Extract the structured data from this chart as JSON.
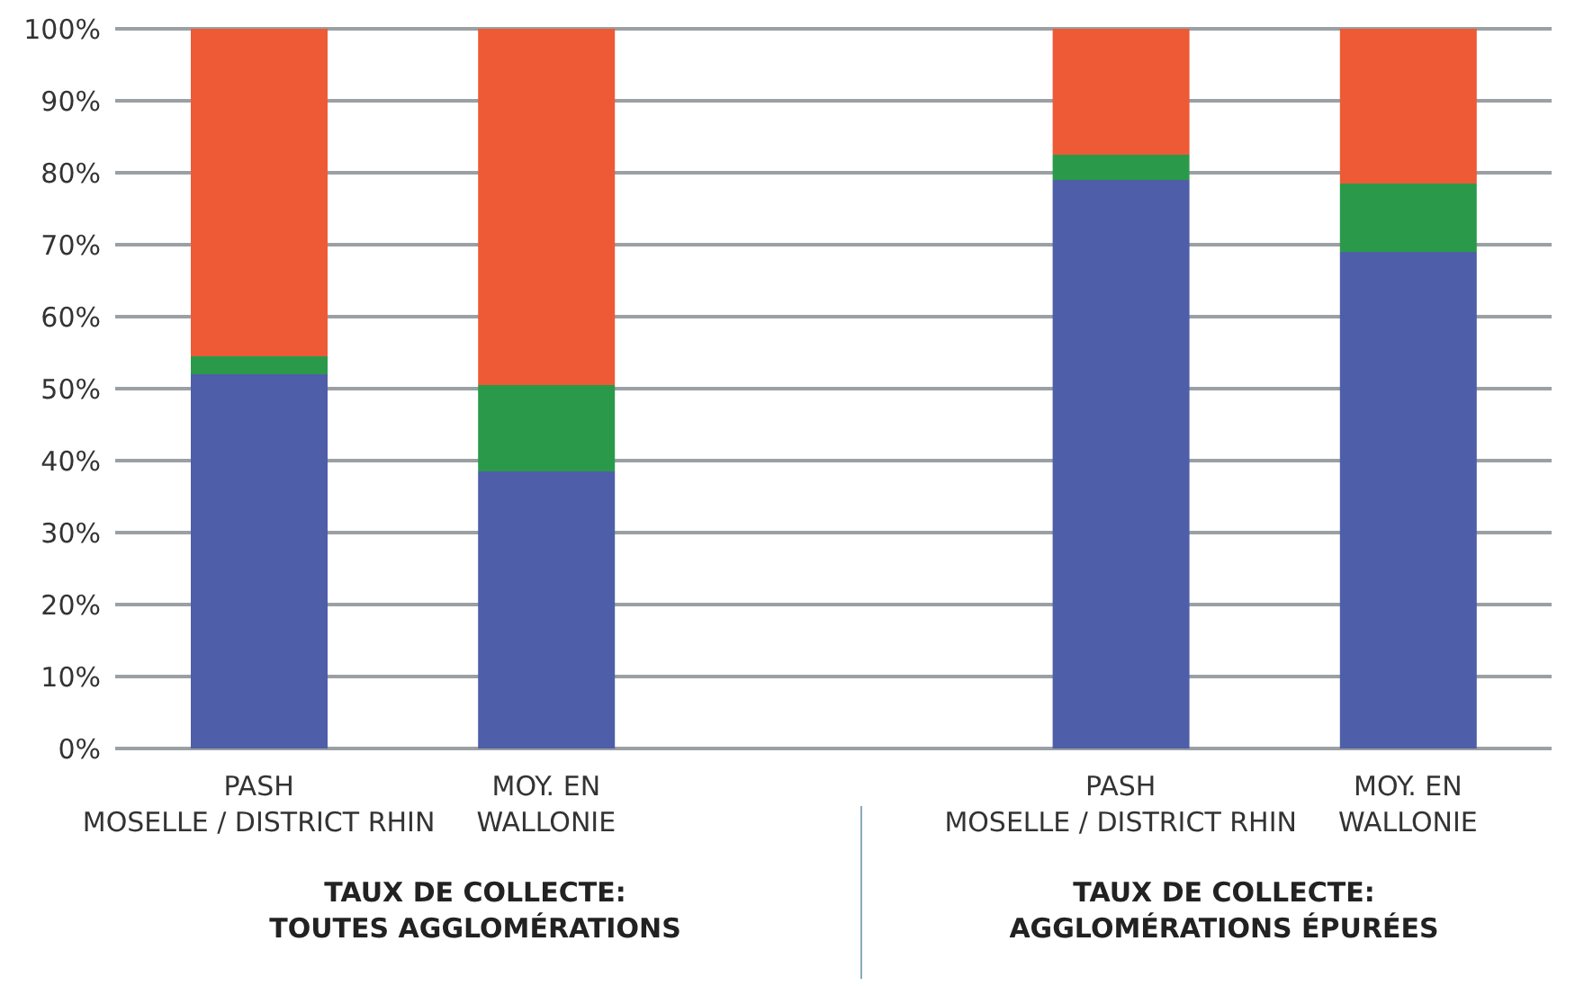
{
  "chart_data": {
    "type": "bar",
    "stacked": true,
    "grid": "y",
    "legend": false,
    "categories": [
      "PASH\nMOSELLE / DISTRICT RHIN",
      "MOY. EN\nWALLONIE",
      null,
      "PASH\nMOSELLE / DISTRICT RHIN",
      "MOY. EN\nWALLONIE"
    ],
    "series": [
      {
        "color": "#4f5ea8",
        "values": [
          52,
          38.5,
          null,
          79,
          69
        ]
      },
      {
        "color": "#2a9a4a",
        "values": [
          2.5,
          12,
          null,
          3.5,
          9.5
        ]
      },
      {
        "color": "#ee5a36",
        "values": [
          45.5,
          49.5,
          null,
          17.5,
          21.5
        ]
      }
    ],
    "ylim": [
      0,
      100
    ],
    "yticks": [
      {
        "value": 0,
        "label": "0%"
      },
      {
        "value": 10,
        "label": "10%"
      },
      {
        "value": 20,
        "label": "20%"
      },
      {
        "value": 30,
        "label": "30%"
      },
      {
        "value": 40,
        "label": "40%"
      },
      {
        "value": 50,
        "label": "50%"
      },
      {
        "value": 60,
        "label": "60%"
      },
      {
        "value": 70,
        "label": "70%"
      },
      {
        "value": 80,
        "label": "80%"
      },
      {
        "value": 90,
        "label": "90%"
      },
      {
        "value": 100,
        "label": "100%"
      }
    ],
    "annotations": [
      "TAUX DE COLLECTE:\nTOUTES AGGLOMÉRATIONS",
      "TAUX DE COLLECTE:\nAGGLOMÉRATIONS ÉPURÉES"
    ]
  }
}
